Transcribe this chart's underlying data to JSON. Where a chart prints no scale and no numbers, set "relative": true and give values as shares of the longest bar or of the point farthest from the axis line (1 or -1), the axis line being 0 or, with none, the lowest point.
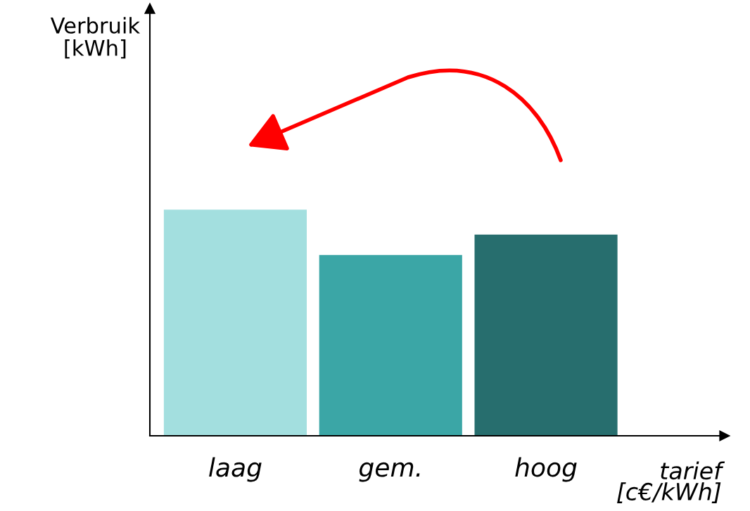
{
  "chart_data": {
    "type": "bar",
    "relative": true,
    "xlabel": "tarief [c€/kWh]",
    "annotations": [
      "Verbruik [kWh]"
    ],
    "categories": [
      "laag",
      "gem.",
      "hoog"
    ],
    "values": [
      1,
      0.8,
      0.89
    ],
    "colors": [
      "#a3dfdf",
      "#3ba6a6",
      "#276e6e"
    ],
    "grid": false,
    "legend": false
  }
}
